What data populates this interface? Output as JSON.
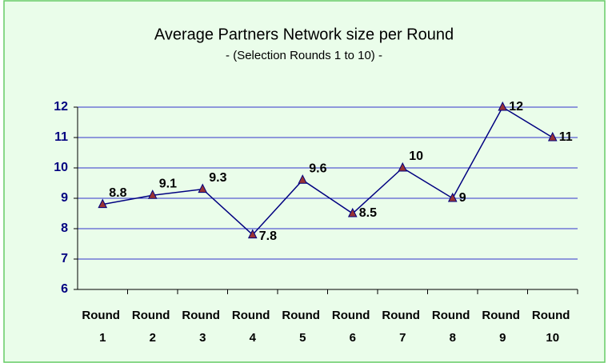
{
  "chart_data": {
    "type": "line",
    "title": "Average Partners Network size per Round",
    "subtitle": "- (Selection Rounds 1 to 10) -",
    "categories": [
      "Round 1",
      "Round 2",
      "Round 3",
      "Round 4",
      "Round 5",
      "Round 6",
      "Round 7",
      "Round 8",
      "Round 9",
      "Round 10"
    ],
    "series": [
      {
        "name": "Average Partners Network size",
        "color": "#000080",
        "marker_color": "#993333",
        "values": [
          8.8,
          9.1,
          9.3,
          7.8,
          9.6,
          8.5,
          10,
          9,
          12,
          11
        ]
      }
    ],
    "ylim": [
      6,
      12
    ],
    "yticks": [
      6,
      7,
      8,
      9,
      10,
      11,
      12
    ],
    "grid": true
  }
}
